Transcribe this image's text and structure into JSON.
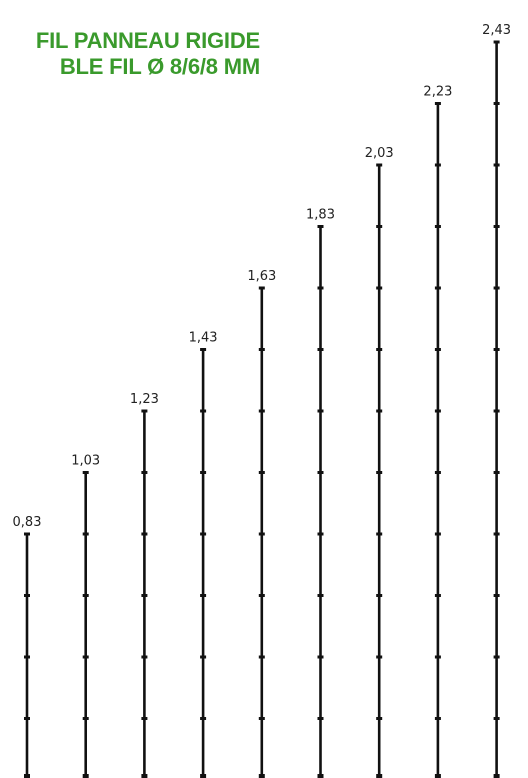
{
  "title": {
    "line1": "FIL PANNEAU RIGIDE",
    "line2": "BLE FIL Ø 8/6/8 MM",
    "color": "#3a9a2c"
  },
  "post_heights": [
    {
      "label": "0,83"
    },
    {
      "label": "1,03"
    },
    {
      "label": "1,23"
    },
    {
      "label": "1,43"
    },
    {
      "label": "1,63"
    },
    {
      "label": "1,83"
    },
    {
      "label": "2,03"
    },
    {
      "label": "2,23"
    },
    {
      "label": "2,43"
    }
  ],
  "post_color": "#111111"
}
